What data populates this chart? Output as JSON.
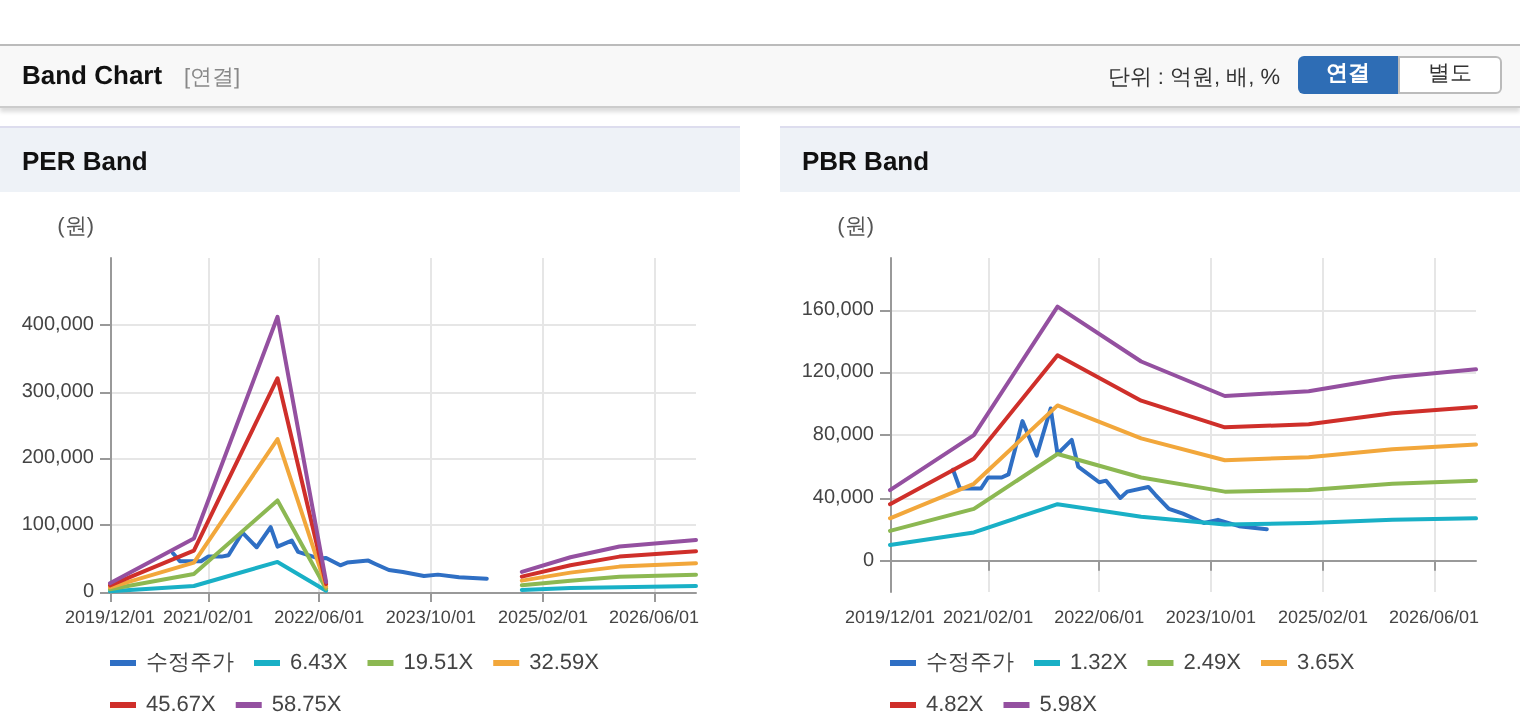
{
  "chart_data": [
    {
      "type": "line",
      "title": "PER Band",
      "ylabel": "(원)",
      "annotations": [
        "Band Chart",
        "[연결]",
        "단위 : 억원, 배, %",
        "연결",
        "별도"
      ],
      "x": [
        "2019-12",
        "2020-12",
        "2021-12",
        "2022-07",
        "2023-09",
        "2024-11",
        "2025-06",
        "2026-01",
        "2026-12"
      ],
      "series": [
        {
          "name": "수정주가",
          "color": "#2f6fc4",
          "x": [
            "2020-09",
            "2020-10",
            "2021-01",
            "2021-02",
            "2021-04",
            "2021-05",
            "2021-07",
            "2021-09",
            "2021-11",
            "2021-12",
            "2022-02",
            "2022-03",
            "2022-06",
            "2022-07",
            "2022-09",
            "2022-10",
            "2023-01",
            "2023-02",
            "2023-04",
            "2023-06",
            "2023-09",
            "2023-11",
            "2024-02",
            "2024-06"
          ],
          "values": [
            58000,
            46000,
            46000,
            53000,
            53000,
            55000,
            89000,
            67000,
            97000,
            68000,
            77000,
            60000,
            50000,
            51000,
            40000,
            44000,
            47000,
            42000,
            33000,
            30000,
            24000,
            26000,
            22000,
            20000
          ]
        },
        {
          "name": "6.43X",
          "color": "#19b0c6",
          "values": [
            1000,
            9000,
            45000,
            2000,
            null,
            3000,
            6000,
            7000,
            9000
          ]
        },
        {
          "name": "19.51X",
          "color": "#8cb852",
          "values": [
            4000,
            27000,
            137000,
            5000,
            null,
            10000,
            17000,
            23000,
            26000
          ]
        },
        {
          "name": "32.59X",
          "color": "#f2a73b",
          "values": [
            7000,
            44000,
            229000,
            8000,
            null,
            17000,
            29000,
            38000,
            43000
          ]
        },
        {
          "name": "45.67X",
          "color": "#cf2f2a",
          "values": [
            10000,
            62000,
            320000,
            12000,
            null,
            23000,
            40000,
            53000,
            61000
          ]
        },
        {
          "name": "58.75X",
          "color": "#9450a0",
          "values": [
            13000,
            80000,
            412000,
            15000,
            null,
            30000,
            52000,
            68000,
            78000
          ]
        }
      ],
      "xlim": [
        "2019-12-01",
        "2026-12-01"
      ],
      "xticks": [
        {
          "value": "2019-12-01",
          "label": "2019/12/01"
        },
        {
          "value": "2021-02-01",
          "label": "2021/02/01"
        },
        {
          "value": "2022-06-01",
          "label": "2022/06/01"
        },
        {
          "value": "2023-10-01",
          "label": "2023/10/01"
        },
        {
          "value": "2025-02-01",
          "label": "2025/02/01"
        },
        {
          "value": "2026-06-01",
          "label": "2026/06/01"
        }
      ],
      "ylim": [
        0,
        500000
      ],
      "yticks": [
        0,
        {
          "value": 100000,
          "label": "100,000"
        },
        {
          "value": 200000,
          "label": "200,000"
        },
        {
          "value": 300000,
          "label": "300,000"
        },
        {
          "value": 400000,
          "label": "400,000"
        }
      ],
      "grid": true,
      "legend": "bottom",
      "marker": "none",
      "line_style": "solid"
    },
    {
      "type": "line",
      "title": "PBR Band",
      "ylabel": "(원)",
      "x": [
        "2019-12",
        "2020-12",
        "2021-12",
        "2022-12",
        "2023-12",
        "2024-12",
        "2025-12",
        "2026-12"
      ],
      "series": [
        {
          "name": "수정주가",
          "color": "#2f6fc4",
          "x": [
            "2020-09",
            "2020-10",
            "2021-01",
            "2021-02",
            "2021-04",
            "2021-05",
            "2021-07",
            "2021-09",
            "2021-11",
            "2021-12",
            "2022-02",
            "2022-03",
            "2022-06",
            "2022-07",
            "2022-09",
            "2022-10",
            "2023-01",
            "2023-02",
            "2023-04",
            "2023-06",
            "2023-09",
            "2023-11",
            "2024-02",
            "2024-06"
          ],
          "values": [
            58000,
            46000,
            46000,
            53000,
            53000,
            55000,
            89000,
            67000,
            97000,
            68000,
            77000,
            60000,
            50000,
            51000,
            40000,
            44000,
            47000,
            42000,
            33000,
            30000,
            24000,
            26000,
            22000,
            20000
          ]
        },
        {
          "name": "1.32X",
          "color": "#19b0c6",
          "values": [
            10000,
            18000,
            36000,
            28000,
            23000,
            24000,
            26000,
            27000
          ]
        },
        {
          "name": "2.49X",
          "color": "#8cb852",
          "values": [
            19000,
            33000,
            68000,
            53000,
            44000,
            45000,
            49000,
            51000
          ]
        },
        {
          "name": "3.65X",
          "color": "#f2a73b",
          "values": [
            27000,
            49000,
            99000,
            78000,
            64000,
            66000,
            71000,
            74000
          ]
        },
        {
          "name": "4.82X",
          "color": "#cf2f2a",
          "values": [
            36000,
            65000,
            131000,
            102000,
            85000,
            87000,
            94000,
            98000
          ]
        },
        {
          "name": "5.98X",
          "color": "#9450a0",
          "values": [
            45000,
            80000,
            162000,
            127000,
            105000,
            108000,
            117000,
            122000
          ]
        }
      ],
      "xlim": [
        "2019-12-01",
        "2026-12-01"
      ],
      "xticks": [
        {
          "value": "2019-12-01",
          "label": "2019/12/01"
        },
        {
          "value": "2021-02-01",
          "label": "2021/02/01"
        },
        {
          "value": "2022-06-01",
          "label": "2022/06/01"
        },
        {
          "value": "2023-10-01",
          "label": "2023/10/01"
        },
        {
          "value": "2025-02-01",
          "label": "2025/02/01"
        },
        {
          "value": "2026-06-01",
          "label": "2026/06/01"
        }
      ],
      "ylim": [
        -20000,
        193000
      ],
      "yticks": [
        0,
        {
          "value": 40000,
          "label": "40,000"
        },
        {
          "value": 80000,
          "label": "80,000"
        },
        {
          "value": 120000,
          "label": "120,000"
        },
        {
          "value": 160000,
          "label": "160,000"
        }
      ],
      "grid": true,
      "legend": "bottom",
      "marker": "none",
      "line_style": "solid"
    }
  ]
}
